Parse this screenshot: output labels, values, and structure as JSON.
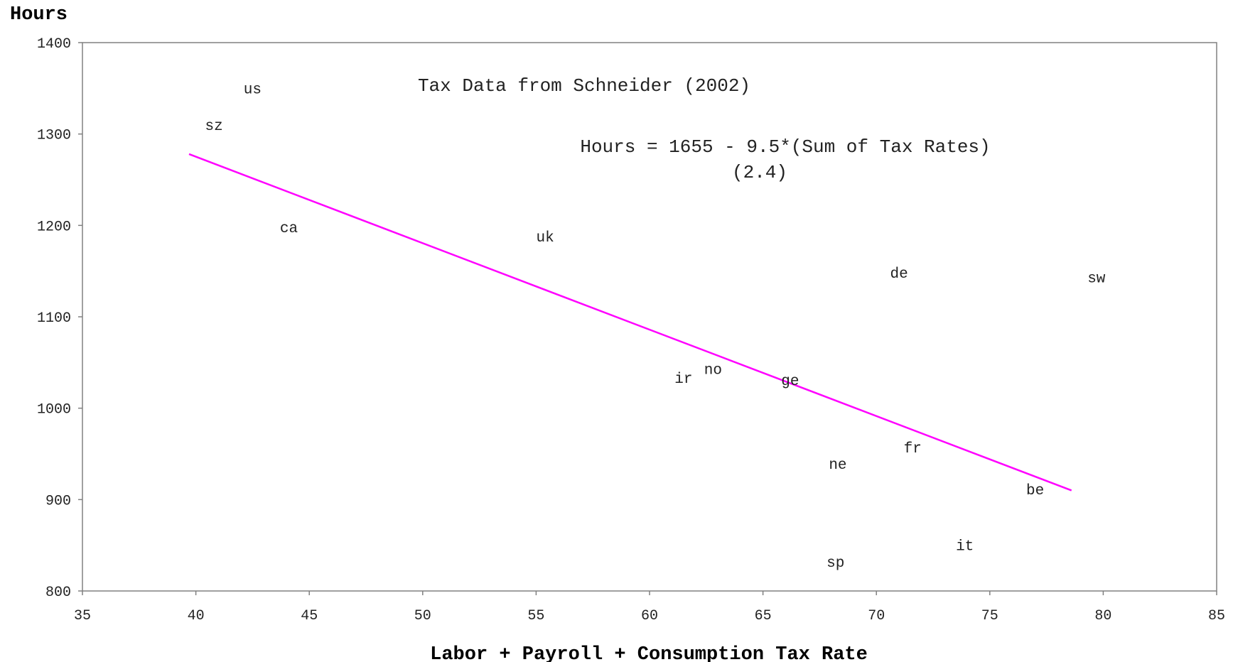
{
  "chart_data": {
    "type": "scatter",
    "title": "Tax Data from Schneider (2002)",
    "annotation": {
      "line1": "Hours = 1655 - 9.5*(Sum of Tax Rates)",
      "line2": "(2.4)"
    },
    "xlabel": "Labor + Payroll + Consumption Tax Rate",
    "ylabel": "Hours",
    "xlim": [
      35,
      85
    ],
    "ylim": [
      800,
      1400
    ],
    "x_ticks": [
      35,
      40,
      45,
      50,
      55,
      60,
      65,
      70,
      75,
      80,
      85
    ],
    "y_ticks": [
      800,
      900,
      1000,
      1100,
      1200,
      1300,
      1400
    ],
    "grid": false,
    "points": [
      {
        "label": "us",
        "x": 42.5,
        "y": 1350
      },
      {
        "label": "sz",
        "x": 40.8,
        "y": 1310
      },
      {
        "label": "ca",
        "x": 44.1,
        "y": 1198
      },
      {
        "label": "uk",
        "x": 55.4,
        "y": 1188
      },
      {
        "label": "de",
        "x": 71.0,
        "y": 1148
      },
      {
        "label": "sw",
        "x": 79.7,
        "y": 1143
      },
      {
        "label": "ir",
        "x": 61.5,
        "y": 1033
      },
      {
        "label": "no",
        "x": 62.8,
        "y": 1043
      },
      {
        "label": "ge",
        "x": 66.2,
        "y": 1031
      },
      {
        "label": "fr",
        "x": 71.6,
        "y": 957
      },
      {
        "label": "ne",
        "x": 68.3,
        "y": 939
      },
      {
        "label": "be",
        "x": 77.0,
        "y": 911
      },
      {
        "label": "it",
        "x": 73.9,
        "y": 850
      },
      {
        "label": "sp",
        "x": 68.2,
        "y": 832
      }
    ],
    "fit_line": {
      "x": [
        39.7,
        78.6
      ],
      "y": [
        1278,
        910
      ],
      "color": "#ff00ff"
    },
    "colors": {
      "axis": "#808080",
      "text": "#222222"
    }
  }
}
